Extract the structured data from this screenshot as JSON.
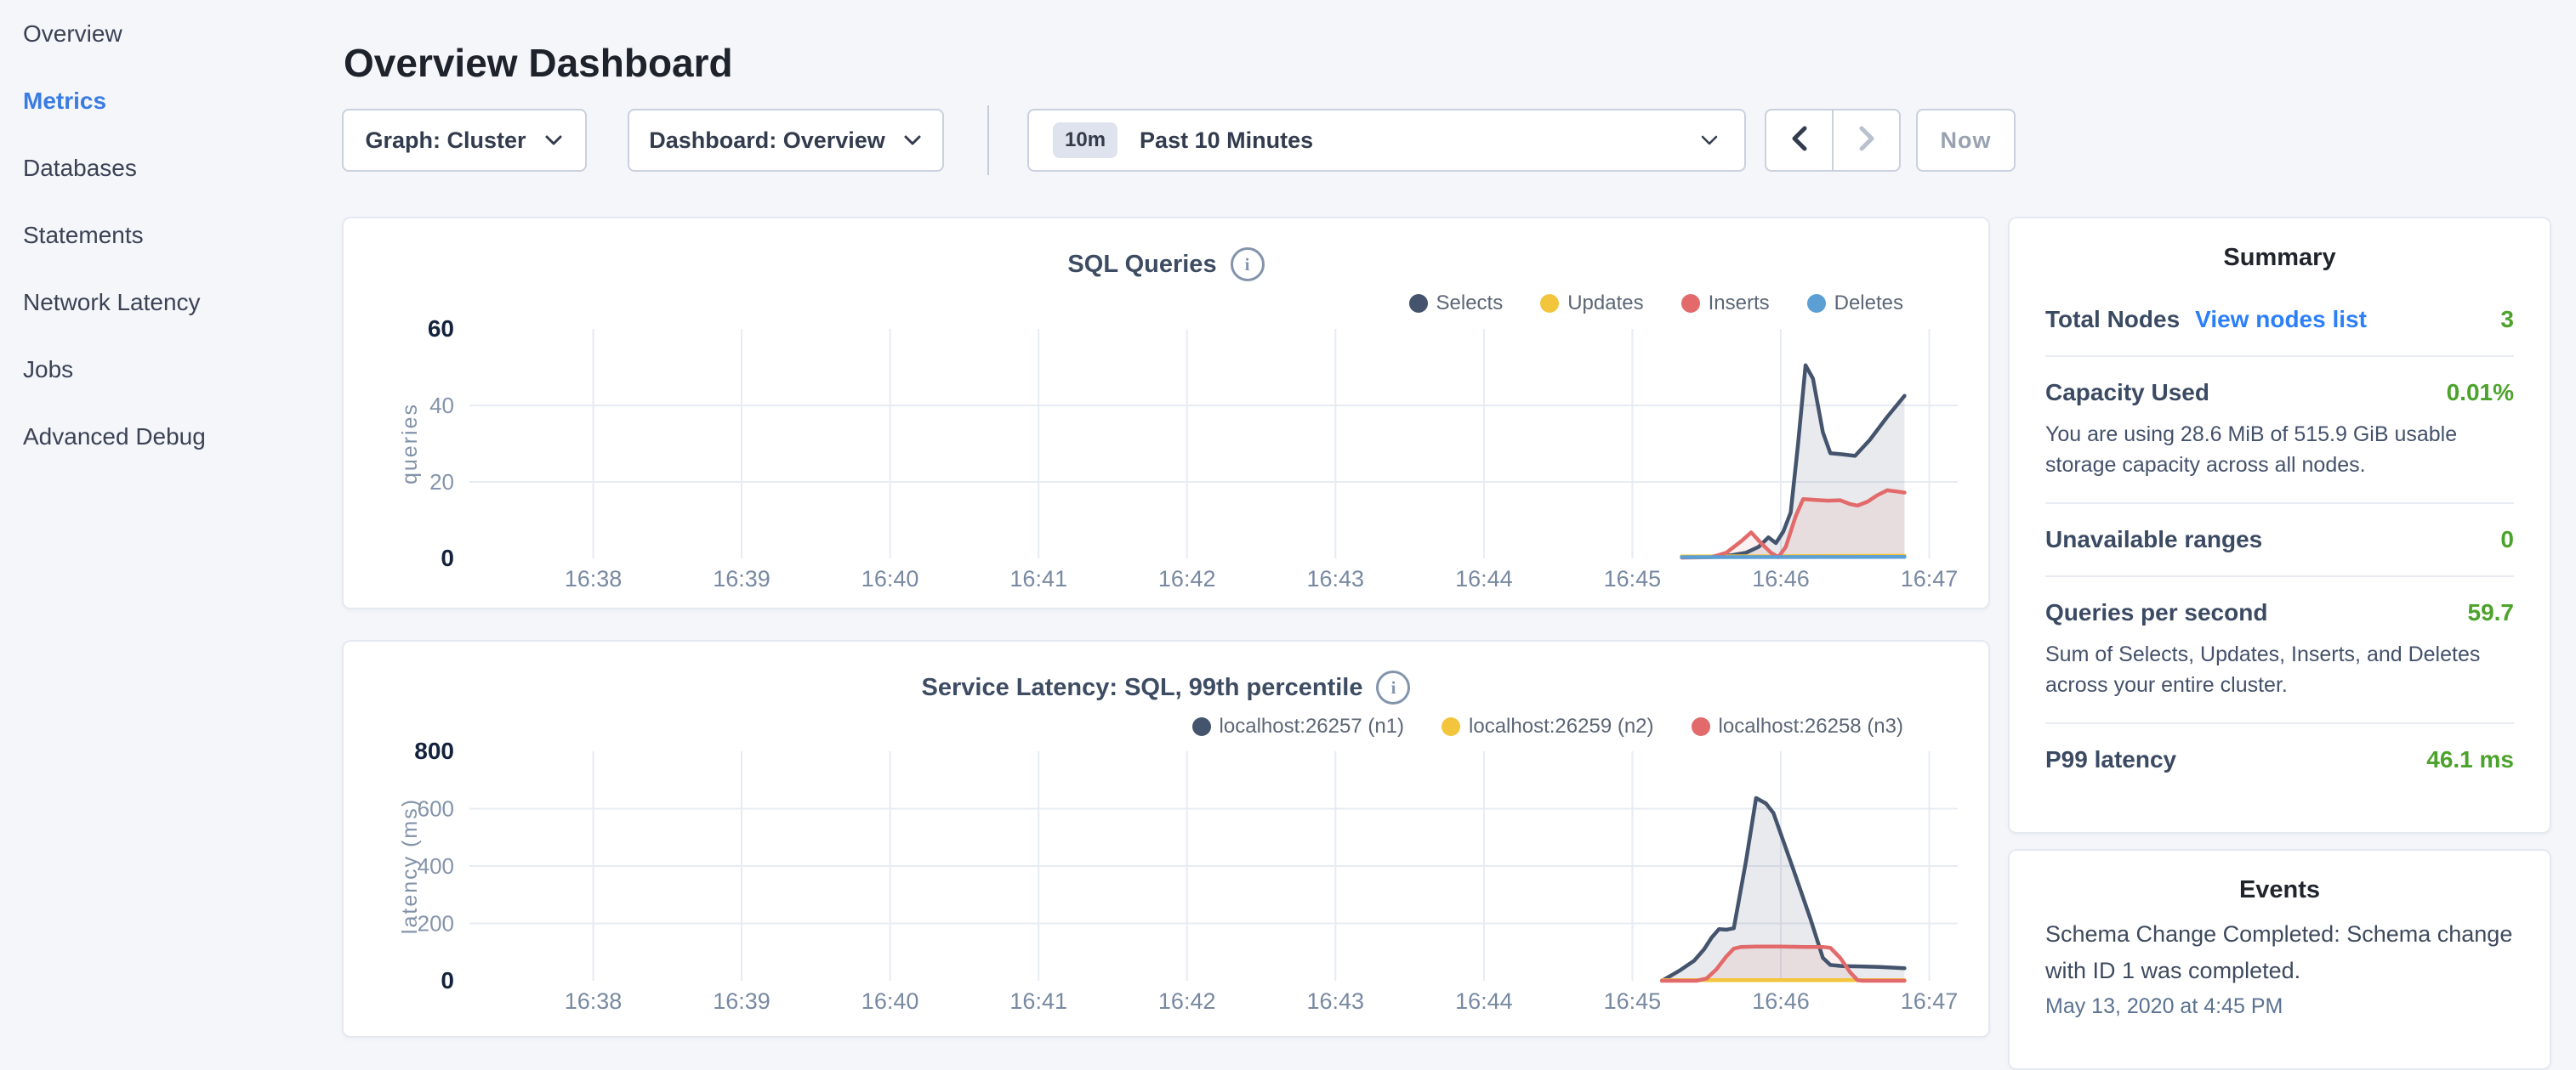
{
  "sidebar": {
    "items": [
      {
        "label": "Overview",
        "active": false
      },
      {
        "label": "Metrics",
        "active": true
      },
      {
        "label": "Databases",
        "active": false
      },
      {
        "label": "Statements",
        "active": false
      },
      {
        "label": "Network Latency",
        "active": false
      },
      {
        "label": "Jobs",
        "active": false
      },
      {
        "label": "Advanced Debug",
        "active": false
      }
    ]
  },
  "header": {
    "title": "Overview Dashboard"
  },
  "controls": {
    "graph_dropdown": "Graph: Cluster",
    "dashboard_dropdown": "Dashboard: Overview",
    "range_badge": "10m",
    "range_label": "Past 10 Minutes",
    "now_label": "Now"
  },
  "chart_data": [
    {
      "type": "area",
      "title": "SQL Queries",
      "ylabel": "queries",
      "y_max": 60,
      "y_ticks": [
        0,
        20,
        40,
        60
      ],
      "y_gridlines": [
        20,
        40
      ],
      "x_tick_labels": [
        "16:38",
        "16:39",
        "16:40",
        "16:41",
        "16:42",
        "16:43",
        "16:44",
        "16:45",
        "16:46",
        "16:47"
      ],
      "x_range_seconds": [
        -50,
        551.5
      ],
      "grid": true,
      "legend_position": "top-right",
      "series": [
        {
          "name": "Selects",
          "color": "#44546d",
          "fill": "rgba(68,84,109,0.12)",
          "points": [
            [
              440,
              0.5
            ],
            [
              452,
              0.5
            ],
            [
              460,
              0.8
            ],
            [
              466,
              1.5
            ],
            [
              471,
              3
            ],
            [
              475,
              5.5
            ],
            [
              478,
              4
            ],
            [
              481,
              7
            ],
            [
              484,
              12
            ],
            [
              487,
              30
            ],
            [
              490,
              50.5
            ],
            [
              493,
              47
            ],
            [
              497,
              33
            ],
            [
              500,
              27.5
            ],
            [
              505,
              27.2
            ],
            [
              510,
              26.8
            ],
            [
              516,
              31
            ],
            [
              523,
              37
            ],
            [
              530,
              42.5
            ]
          ]
        },
        {
          "name": "Updates",
          "color": "#f2c53d",
          "fill": null,
          "points": [
            [
              440,
              0.5
            ],
            [
              530,
              0.7
            ]
          ]
        },
        {
          "name": "Inserts",
          "color": "#e26a6a",
          "fill": "rgba(226,106,106,0.10)",
          "points": [
            [
              440,
              0.2
            ],
            [
              452,
              0.3
            ],
            [
              458,
              1.5
            ],
            [
              464,
              4.5
            ],
            [
              468,
              6.8
            ],
            [
              472,
              4
            ],
            [
              476,
              1.5
            ],
            [
              479,
              0.3
            ],
            [
              482,
              3
            ],
            [
              486,
              11
            ],
            [
              489,
              15.5
            ],
            [
              494,
              15.3
            ],
            [
              499,
              15.1
            ],
            [
              504,
              15.2
            ],
            [
              508,
              14.2
            ],
            [
              511,
              13.8
            ],
            [
              515,
              14.8
            ],
            [
              519,
              16.5
            ],
            [
              523,
              17.8
            ],
            [
              527,
              17.5
            ],
            [
              530,
              17.2
            ]
          ]
        },
        {
          "name": "Deletes",
          "color": "#5b9fd4",
          "fill": null,
          "points": [
            [
              440,
              0.3
            ],
            [
              530,
              0.4
            ]
          ]
        }
      ]
    },
    {
      "type": "area",
      "title": "Service Latency: SQL, 99th percentile",
      "ylabel": "latency (ms)",
      "y_max": 800,
      "y_ticks": [
        0,
        200,
        400,
        600,
        800
      ],
      "y_gridlines": [
        200,
        400,
        600
      ],
      "x_tick_labels": [
        "16:38",
        "16:39",
        "16:40",
        "16:41",
        "16:42",
        "16:43",
        "16:44",
        "16:45",
        "16:46",
        "16:47"
      ],
      "x_range_seconds": [
        -50,
        551.5
      ],
      "grid": true,
      "legend_position": "top-right",
      "series": [
        {
          "name": "localhost:26257 (n1)",
          "color": "#44546d",
          "fill": "rgba(68,84,109,0.12)",
          "points": [
            [
              432,
              0
            ],
            [
              439,
              35
            ],
            [
              445,
              70
            ],
            [
              449,
              110
            ],
            [
              452,
              150
            ],
            [
              455,
              180
            ],
            [
              458,
              178
            ],
            [
              461,
              183
            ],
            [
              466,
              420
            ],
            [
              470,
              637
            ],
            [
              474,
              618
            ],
            [
              477,
              585
            ],
            [
              485,
              390
            ],
            [
              492,
              215
            ],
            [
              497,
              80
            ],
            [
              500,
              55
            ],
            [
              505,
              51
            ],
            [
              512,
              50
            ],
            [
              520,
              48
            ],
            [
              530,
              44
            ]
          ]
        },
        {
          "name": "localhost:26259 (n2)",
          "color": "#f2c53d",
          "fill": null,
          "points": [
            [
              432,
              2
            ],
            [
              530,
              2
            ]
          ]
        },
        {
          "name": "localhost:26258 (n3)",
          "color": "#e26a6a",
          "fill": "rgba(226,106,106,0.10)",
          "points": [
            [
              432,
              0
            ],
            [
              446,
              0
            ],
            [
              450,
              8
            ],
            [
              454,
              40
            ],
            [
              458,
              85
            ],
            [
              461,
              112
            ],
            [
              464,
              118
            ],
            [
              470,
              119
            ],
            [
              480,
              119
            ],
            [
              490,
              118
            ],
            [
              497,
              118
            ],
            [
              500,
              115
            ],
            [
              504,
              80
            ],
            [
              508,
              30
            ],
            [
              511,
              2
            ],
            [
              513,
              0
            ],
            [
              530,
              0
            ]
          ]
        }
      ]
    }
  ],
  "summary": {
    "title": "Summary",
    "total_nodes_label": "Total Nodes",
    "total_nodes_link": "View nodes list",
    "total_nodes_value": "3",
    "capacity_label": "Capacity Used",
    "capacity_value": "0.01%",
    "capacity_sub": "You are using 28.6 MiB of 515.9 GiB usable storage capacity across all nodes.",
    "unavailable_label": "Unavailable ranges",
    "unavailable_value": "0",
    "qps_label": "Queries per second",
    "qps_value": "59.7",
    "qps_sub": "Sum of Selects, Updates, Inserts, and Deletes across your entire cluster.",
    "p99_label": "P99 latency",
    "p99_value": "46.1 ms"
  },
  "events": {
    "title": "Events",
    "items": [
      {
        "text": "Schema Change Completed: Schema change with ID 1 was completed.",
        "time": "May 13, 2020 at 4:45 PM"
      }
    ]
  },
  "colors": {
    "accent_blue": "#3a7ce2",
    "link_blue": "#2d7ff9",
    "value_green": "#4ca32b",
    "series_navy": "#44546d",
    "series_yellow": "#f2c53d",
    "series_red": "#e26a6a",
    "series_blue": "#5b9fd4"
  }
}
